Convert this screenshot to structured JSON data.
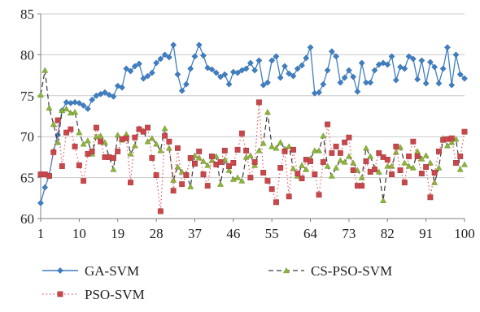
{
  "chart_data": {
    "type": "line",
    "title": "",
    "xlabel": "",
    "ylabel": "",
    "ylim": [
      60,
      85
    ],
    "xlim": [
      1,
      100
    ],
    "yticks": [
      60,
      65,
      70,
      75,
      80,
      85
    ],
    "xticks": [
      1,
      10,
      19,
      28,
      37,
      46,
      55,
      64,
      73,
      82,
      91,
      100
    ],
    "grid": "horizontal",
    "legend_position": "bottom",
    "series": [
      {
        "name": "GA-SVM",
        "color": "#3f7fc1",
        "marker": "diamond",
        "line": "solid",
        "values": [
          61.9,
          63.8,
          65.3,
          68.2,
          70.2,
          73.2,
          74.2,
          74.1,
          74.2,
          74.1,
          73.8,
          73.4,
          74.5,
          75.0,
          75.2,
          75.4,
          75.1,
          74.9,
          76.2,
          76.0,
          78.3,
          78.0,
          78.6,
          78.9,
          77.1,
          77.4,
          77.8,
          79.0,
          79.5,
          80.0,
          79.7,
          81.2,
          77.6,
          75.6,
          76.4,
          78.3,
          79.8,
          81.2,
          79.9,
          78.4,
          78.2,
          77.8,
          77.3,
          77.6,
          76.4,
          77.9,
          77.8,
          78.1,
          78.3,
          79.0,
          78.1,
          79.3,
          76.3,
          76.6,
          79.3,
          79.8,
          77.2,
          78.6,
          77.7,
          77.4,
          78.3,
          78.7,
          79.6,
          80.9,
          75.3,
          75.4,
          76.4,
          78.1,
          80.4,
          79.8,
          76.6,
          77.2,
          78.1,
          77.3,
          75.5,
          79.0,
          76.6,
          76.6,
          78.1,
          78.8,
          79.0,
          78.8,
          79.8,
          76.9,
          78.5,
          78.3,
          79.8,
          79.5,
          77.0,
          79.3,
          76.5,
          79.1,
          78.5,
          76.5,
          78.3,
          80.9,
          76.3,
          80.0,
          77.6,
          77.1
        ]
      },
      {
        "name": "CS-PSO-SVM",
        "color": "#3a3a3a",
        "marker": "triangle",
        "marker_color": "#8cb43c",
        "line": "dashed",
        "values": [
          75.1,
          78.1,
          73.5,
          71.5,
          69.3,
          73.2,
          73.4,
          72.9,
          73.0,
          70.5,
          69.1,
          69.5,
          67.9,
          70.0,
          70.1,
          69.3,
          67.5,
          66.0,
          70.2,
          69.6,
          70.3,
          67.9,
          68.9,
          71.0,
          70.7,
          69.4,
          69.8,
          69.1,
          68.3,
          71.0,
          68.6,
          64.7,
          66.3,
          65.7,
          65.5,
          63.9,
          67.7,
          67.4,
          67.0,
          66.5,
          67.1,
          67.6,
          64.2,
          67.2,
          65.9,
          64.8,
          65.0,
          64.6,
          67.5,
          67.7,
          66.5,
          68.3,
          69.2,
          73.0,
          68.8,
          68.6,
          69.3,
          68.5,
          68.8,
          66.1,
          65.2,
          66.5,
          66.0,
          67.3,
          68.3,
          68.3,
          70.1,
          66.4,
          65.2,
          66.2,
          67.1,
          66.9,
          67.6,
          66.8,
          65.9,
          65.0,
          68.6,
          67.6,
          66.2,
          65.7,
          62.2,
          66.4,
          66.4,
          68.1,
          68.7,
          66.8,
          66.4,
          66.2,
          68.2,
          67.3,
          67.7,
          66.8,
          64.4,
          66.2,
          69.8,
          68.9,
          69.3,
          69.7,
          66.0,
          66.6
        ]
      },
      {
        "name": "PSO-SVM",
        "color": "#e2595e",
        "marker": "square",
        "marker_color": "#c8474b",
        "line": "dotted",
        "values": [
          65.4,
          65.4,
          65.2,
          68.1,
          72.0,
          66.4,
          70.5,
          70.9,
          68.8,
          66.5,
          64.6,
          67.9,
          68.2,
          71.1,
          69.4,
          67.5,
          67.5,
          67.4,
          68.2,
          69.7,
          69.8,
          64.4,
          69.9,
          70.9,
          70.6,
          71.1,
          67.4,
          65.3,
          60.9,
          70.1,
          69.4,
          63.4,
          68.6,
          64.2,
          65.3,
          67.4,
          66.7,
          68.2,
          65.4,
          64.0,
          67.6,
          66.6,
          66.9,
          68.3,
          66.4,
          66.8,
          68.4,
          70.4,
          68.3,
          65.0,
          66.9,
          74.2,
          65.6,
          64.6,
          63.6,
          62.0,
          66.2,
          68.2,
          62.7,
          68.4,
          65.5,
          64.9,
          67.2,
          67.0,
          65.4,
          62.9,
          66.9,
          71.5,
          68.0,
          68.8,
          68.0,
          69.3,
          69.9,
          65.9,
          64.0,
          64.0,
          67.0,
          65.7,
          66.0,
          68.0,
          67.5,
          67.2,
          65.4,
          68.8,
          65.9,
          64.4,
          67.6,
          69.4,
          67.6,
          65.5,
          66.3,
          62.6,
          65.6,
          68.2,
          69.6,
          69.7,
          69.8,
          66.8,
          67.6,
          70.6
        ]
      }
    ]
  }
}
